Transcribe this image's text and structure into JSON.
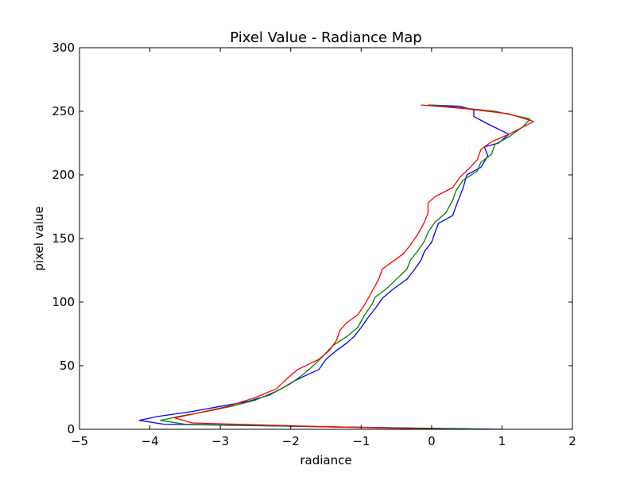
{
  "chart_data": {
    "type": "line",
    "title": "Pixel Value - Radiance Map",
    "xlabel": "radiance",
    "ylabel": "pixel value",
    "xlim": [
      -5,
      2
    ],
    "ylim": [
      0,
      300
    ],
    "xticks": [
      -5,
      -4,
      -3,
      -2,
      -1,
      0,
      1,
      2
    ],
    "yticks": [
      0,
      50,
      100,
      150,
      200,
      250,
      300
    ],
    "xtick_labels": [
      "−5",
      "−4",
      "−3",
      "−2",
      "−1",
      "0",
      "1",
      "2"
    ],
    "ytick_labels": [
      "0",
      "50",
      "100",
      "150",
      "200",
      "250",
      "300"
    ],
    "grid": false,
    "legend": "none",
    "series": [
      {
        "color": "#0000ff",
        "points": [
          [
            1.0,
            0
          ],
          [
            -1.5,
            2
          ],
          [
            -3.8,
            4
          ],
          [
            -4.15,
            7
          ],
          [
            -3.9,
            10
          ],
          [
            -3.4,
            14
          ],
          [
            -3.0,
            18
          ],
          [
            -2.6,
            22
          ],
          [
            -2.3,
            27
          ],
          [
            -2.1,
            33
          ],
          [
            -1.95,
            38
          ],
          [
            -1.8,
            42
          ],
          [
            -1.6,
            47
          ],
          [
            -1.5,
            55
          ],
          [
            -1.35,
            62
          ],
          [
            -1.2,
            68
          ],
          [
            -1.1,
            73
          ],
          [
            -1.0,
            80
          ],
          [
            -0.9,
            88
          ],
          [
            -0.8,
            95
          ],
          [
            -0.7,
            103
          ],
          [
            -0.55,
            110
          ],
          [
            -0.35,
            118
          ],
          [
            -0.25,
            125
          ],
          [
            -0.15,
            133
          ],
          [
            -0.1,
            140
          ],
          [
            0.0,
            147
          ],
          [
            0.05,
            155
          ],
          [
            0.1,
            162
          ],
          [
            0.3,
            168
          ],
          [
            0.35,
            176
          ],
          [
            0.4,
            183
          ],
          [
            0.45,
            190
          ],
          [
            0.5,
            200
          ],
          [
            0.7,
            206
          ],
          [
            0.8,
            215
          ],
          [
            0.75,
            222
          ],
          [
            0.95,
            225
          ],
          [
            1.1,
            232
          ],
          [
            0.8,
            240
          ],
          [
            0.6,
            246
          ],
          [
            0.6,
            251
          ],
          [
            0.4,
            254
          ],
          [
            -0.05,
            255
          ]
        ]
      },
      {
        "color": "#008000",
        "points": [
          [
            0.8,
            0
          ],
          [
            -1.5,
            2
          ],
          [
            -3.5,
            4
          ],
          [
            -3.85,
            7
          ],
          [
            -3.6,
            10
          ],
          [
            -3.2,
            14
          ],
          [
            -2.85,
            18
          ],
          [
            -2.5,
            23
          ],
          [
            -2.2,
            30
          ],
          [
            -2.0,
            36
          ],
          [
            -1.85,
            42
          ],
          [
            -1.7,
            49
          ],
          [
            -1.55,
            57
          ],
          [
            -1.4,
            66
          ],
          [
            -1.2,
            73
          ],
          [
            -1.05,
            80
          ],
          [
            -0.95,
            90
          ],
          [
            -0.85,
            98
          ],
          [
            -0.8,
            104
          ],
          [
            -0.65,
            110
          ],
          [
            -0.5,
            118
          ],
          [
            -0.35,
            126
          ],
          [
            -0.3,
            133
          ],
          [
            -0.2,
            140
          ],
          [
            -0.1,
            148
          ],
          [
            -0.05,
            155
          ],
          [
            0.05,
            163
          ],
          [
            0.2,
            170
          ],
          [
            0.3,
            180
          ],
          [
            0.35,
            188
          ],
          [
            0.45,
            196
          ],
          [
            0.65,
            203
          ],
          [
            0.7,
            210
          ],
          [
            0.85,
            216
          ],
          [
            0.9,
            224
          ],
          [
            1.1,
            230
          ],
          [
            1.3,
            238
          ],
          [
            1.4,
            244
          ],
          [
            0.9,
            250
          ],
          [
            0.2,
            254
          ],
          [
            -0.05,
            255
          ]
        ]
      },
      {
        "color": "#ff0000",
        "points": [
          [
            0.2,
            0
          ],
          [
            -1.5,
            2
          ],
          [
            -3.4,
            5
          ],
          [
            -3.65,
            9
          ],
          [
            -3.3,
            13
          ],
          [
            -2.9,
            18
          ],
          [
            -2.5,
            25
          ],
          [
            -2.2,
            32
          ],
          [
            -2.05,
            40
          ],
          [
            -1.9,
            47
          ],
          [
            -1.6,
            55
          ],
          [
            -1.45,
            62
          ],
          [
            -1.35,
            70
          ],
          [
            -1.3,
            78
          ],
          [
            -1.2,
            84
          ],
          [
            -1.05,
            90
          ],
          [
            -0.95,
            98
          ],
          [
            -0.85,
            108
          ],
          [
            -0.75,
            118
          ],
          [
            -0.7,
            126
          ],
          [
            -0.55,
            132
          ],
          [
            -0.4,
            138
          ],
          [
            -0.3,
            145
          ],
          [
            -0.2,
            153
          ],
          [
            -0.1,
            163
          ],
          [
            -0.05,
            170
          ],
          [
            -0.05,
            178
          ],
          [
            0.05,
            183
          ],
          [
            0.3,
            190
          ],
          [
            0.4,
            198
          ],
          [
            0.55,
            206
          ],
          [
            0.65,
            212
          ],
          [
            0.7,
            220
          ],
          [
            0.85,
            226
          ],
          [
            1.1,
            232
          ],
          [
            1.45,
            242
          ],
          [
            1.1,
            248
          ],
          [
            0.5,
            252
          ],
          [
            -0.15,
            255
          ]
        ]
      }
    ]
  }
}
